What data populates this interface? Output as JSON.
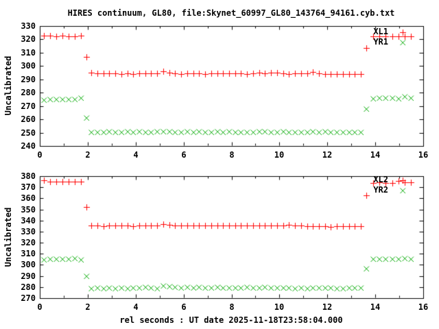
{
  "title": "HIRES continuum, GL80, file:Skynet_60997_GL80_143764_94161.cyb.txt",
  "xlabel": "rel seconds : UT date 2025-11-18T23:58:04.000",
  "colors": {
    "background": "#ffffff",
    "axis": "#000000",
    "series_red": "#ff0000",
    "series_green": "#00aa00"
  },
  "chart_data": [
    {
      "type": "scatter",
      "panel": "top",
      "title": "",
      "ylabel": "Uncalibrated",
      "xlim": [
        0,
        16
      ],
      "ylim": [
        240,
        330
      ],
      "grid": false,
      "legend_position": "top-right-inside",
      "xticks": [
        0,
        2,
        4,
        6,
        8,
        10,
        12,
        14,
        16
      ],
      "xticks_minor": [
        1,
        3,
        5,
        7,
        9,
        11,
        13,
        15
      ],
      "yticks": [
        240,
        250,
        260,
        270,
        280,
        290,
        300,
        310,
        320,
        330
      ],
      "x": [
        0.17,
        0.43,
        0.69,
        0.95,
        1.21,
        1.47,
        1.73,
        1.95,
        2.15,
        2.4,
        2.65,
        2.9,
        3.15,
        3.4,
        3.65,
        3.9,
        4.15,
        4.4,
        4.65,
        4.9,
        5.15,
        5.4,
        5.65,
        5.9,
        6.15,
        6.4,
        6.65,
        6.9,
        7.15,
        7.4,
        7.65,
        7.9,
        8.15,
        8.4,
        8.65,
        8.9,
        9.15,
        9.4,
        9.65,
        9.9,
        10.15,
        10.4,
        10.65,
        10.9,
        11.15,
        11.4,
        11.65,
        11.9,
        12.15,
        12.4,
        12.65,
        12.9,
        13.15,
        13.4,
        13.63,
        13.92,
        14.18,
        14.44,
        14.7,
        14.96,
        15.22,
        15.48
      ],
      "series": [
        {
          "name": "XL1",
          "marker": "plus",
          "color": "#ff0000",
          "values": [
            323,
            323,
            322.5,
            323,
            322.5,
            322.5,
            323,
            307,
            294.8,
            294.5,
            294.3,
            294.6,
            294.4,
            294.2,
            294.5,
            293.8,
            294.5,
            294.3,
            294.6,
            294.4,
            296.3,
            295.2,
            294.4,
            294.2,
            294.5,
            294.3,
            294.6,
            294.2,
            294.4,
            294.6,
            294.3,
            294.5,
            294.7,
            294.4,
            294.2,
            294.5,
            295,
            294.6,
            294.9,
            294.8,
            294.6,
            293.9,
            294.3,
            294.6,
            294.4,
            295.3,
            294.6,
            294.1,
            293.9,
            294,
            293.8,
            293.9,
            294.1,
            294.2,
            313.5,
            322.2,
            322.4,
            322.1,
            322.3,
            322.5,
            322.2,
            322.4
          ]
        },
        {
          "name": "YR1",
          "marker": "cross",
          "color": "#00aa00",
          "values": [
            274.5,
            275,
            275,
            274.8,
            275.2,
            275,
            276,
            261,
            250.2,
            250.5,
            250.3,
            250.6,
            250.4,
            250.2,
            250.8,
            250.4,
            250.6,
            250.3,
            250.5,
            250.7,
            251,
            250.8,
            250.5,
            250.3,
            250.6,
            250.4,
            250.7,
            250.3,
            250.5,
            250.8,
            250.4,
            250.6,
            250.3,
            250.5,
            250.2,
            250.4,
            250.6,
            250.8,
            250.5,
            250.3,
            250.6,
            250.4,
            250.2,
            250.5,
            250.3,
            250.6,
            250.4,
            250.7,
            250.5,
            250.2,
            250.4,
            250.3,
            250.5,
            250.4,
            268,
            275.5,
            276,
            276,
            275.8,
            275.5,
            276.8,
            276.2
          ]
        }
      ]
    },
    {
      "type": "scatter",
      "panel": "bottom",
      "title": "",
      "ylabel": "Uncalibrated",
      "xlim": [
        0,
        16
      ],
      "ylim": [
        270,
        380
      ],
      "grid": false,
      "legend_position": "top-right-inside",
      "xticks": [
        0,
        2,
        4,
        6,
        8,
        10,
        12,
        14,
        16
      ],
      "xticks_minor": [
        1,
        3,
        5,
        7,
        9,
        11,
        13,
        15
      ],
      "yticks": [
        270,
        280,
        290,
        300,
        310,
        320,
        330,
        340,
        350,
        360,
        370,
        380
      ],
      "x": [
        0.17,
        0.43,
        0.69,
        0.95,
        1.21,
        1.47,
        1.73,
        1.95,
        2.15,
        2.4,
        2.65,
        2.9,
        3.15,
        3.4,
        3.65,
        3.9,
        4.15,
        4.4,
        4.65,
        4.9,
        5.15,
        5.4,
        5.65,
        5.9,
        6.15,
        6.4,
        6.65,
        6.9,
        7.15,
        7.4,
        7.65,
        7.9,
        8.15,
        8.4,
        8.65,
        8.9,
        9.15,
        9.4,
        9.65,
        9.9,
        10.15,
        10.4,
        10.65,
        10.9,
        11.15,
        11.4,
        11.65,
        11.9,
        12.15,
        12.4,
        12.65,
        12.9,
        13.15,
        13.4,
        13.63,
        13.92,
        14.18,
        14.44,
        14.7,
        14.96,
        15.22,
        15.48
      ],
      "series": [
        {
          "name": "XL2",
          "marker": "plus",
          "color": "#ff0000",
          "values": [
            376.5,
            375,
            375,
            375,
            375,
            375,
            375,
            352,
            335.5,
            335.3,
            335,
            335.4,
            335.6,
            335.2,
            335.4,
            335.1,
            335.3,
            335.5,
            335.2,
            335.4,
            337,
            336.2,
            335.4,
            335.2,
            335.5,
            335.3,
            335.6,
            335.2,
            335.4,
            335.6,
            335.3,
            335.5,
            335.2,
            335.4,
            335.6,
            335.3,
            335.8,
            335.5,
            335.3,
            335.6,
            335.4,
            336.3,
            335.2,
            335.4,
            334.8,
            335,
            334.6,
            334.8,
            334.5,
            334.7,
            334.9,
            334.6,
            334.8,
            334.7,
            362.5,
            374,
            374.5,
            374,
            374,
            375.5,
            374.5,
            374.5
          ]
        },
        {
          "name": "YR2",
          "marker": "cross",
          "color": "#00aa00",
          "values": [
            304.5,
            305,
            305.2,
            305,
            305.3,
            305.8,
            304.8,
            290,
            278.5,
            279.3,
            278.8,
            279,
            278.6,
            279.2,
            278.9,
            279.4,
            279,
            279.6,
            279.2,
            278.9,
            281.2,
            280.6,
            280,
            279.3,
            279.6,
            279.2,
            279.8,
            279.1,
            279.4,
            279.6,
            279.2,
            279.5,
            279,
            279.3,
            279.6,
            279.2,
            279.4,
            279.7,
            279.3,
            279,
            279.5,
            279.2,
            278.8,
            279.1,
            278.4,
            279,
            279.3,
            279.5,
            279.2,
            278.8,
            278.5,
            279,
            279.2,
            279,
            296.5,
            305,
            305.3,
            305.5,
            305,
            305,
            306,
            305.5
          ]
        }
      ]
    }
  ]
}
